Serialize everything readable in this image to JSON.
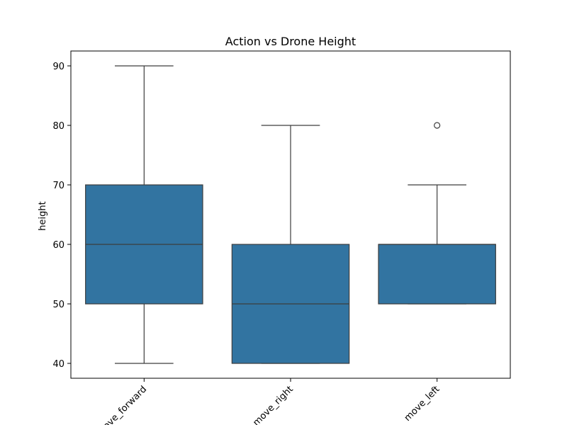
{
  "chart_data": {
    "type": "boxplot",
    "title": "Action vs Drone Height",
    "xlabel": "",
    "ylabel": "height",
    "ylim": [
      37.5,
      92.5
    ],
    "yticks": [
      40,
      50,
      60,
      70,
      80,
      90
    ],
    "grid": false,
    "box_color": "#3274a1",
    "line_color": "#3d3d3d",
    "categories": [
      "move_forward",
      "move_right",
      "move_left"
    ],
    "boxes": [
      {
        "category": "move_forward",
        "whisker_low": 40,
        "q1": 50,
        "median": 60,
        "q3": 70,
        "whisker_high": 90,
        "outliers": []
      },
      {
        "category": "move_right",
        "whisker_low": 40,
        "q1": 40,
        "median": 50,
        "q3": 60,
        "whisker_high": 80,
        "outliers": []
      },
      {
        "category": "move_left",
        "whisker_low": 50,
        "q1": 50,
        "median": 60,
        "q3": 60,
        "whisker_high": 70,
        "outliers": [
          80
        ]
      }
    ]
  }
}
